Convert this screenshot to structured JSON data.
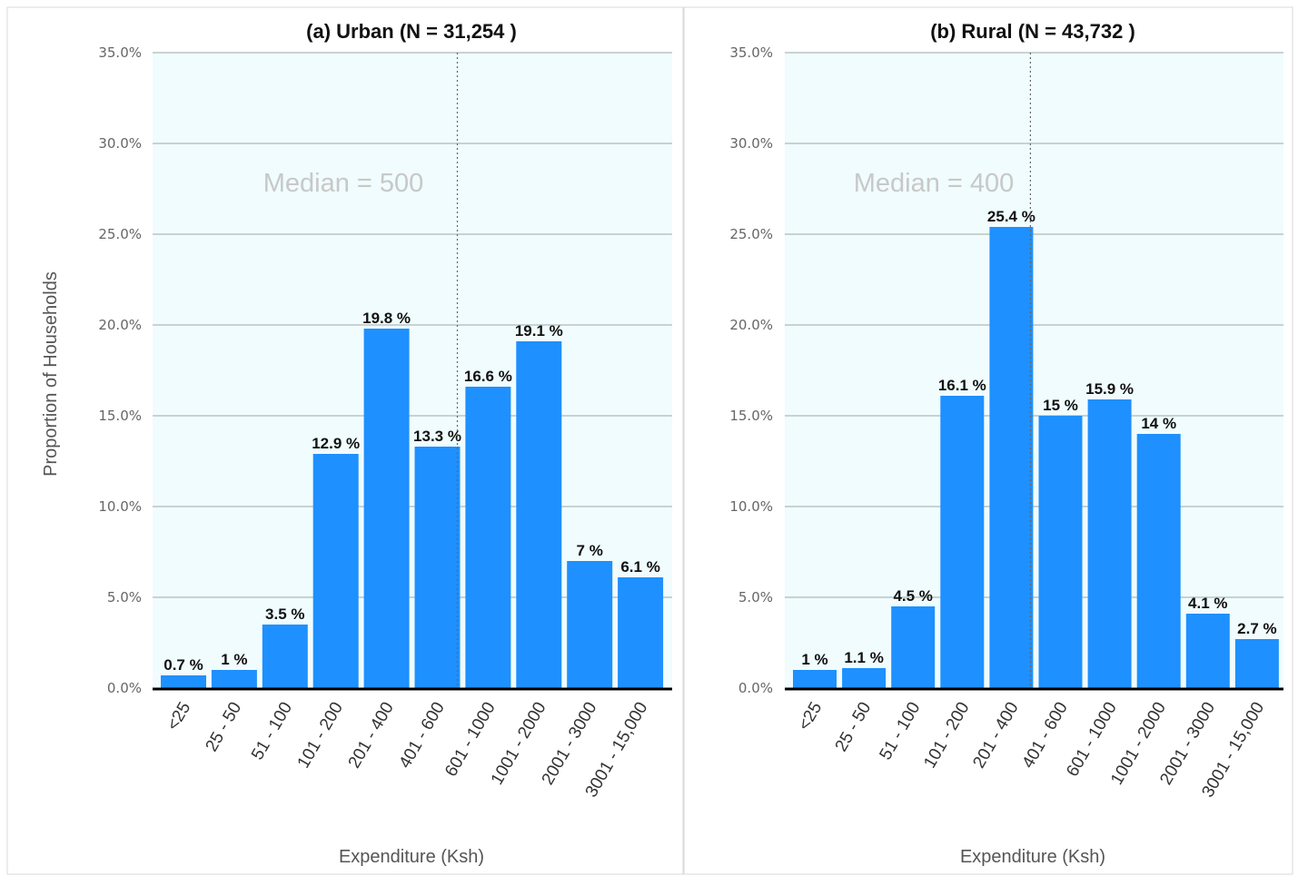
{
  "figure": {
    "ylabel": "Proportion of Households",
    "xlabel": "Expenditure (Ksh)"
  },
  "chart_data": [
    {
      "type": "bar",
      "title": "(a) Urban (N = 31,254 )",
      "xlabel": "Expenditure (Ksh)",
      "ylabel": "Proportion of Households",
      "ylim": [
        0,
        35
      ],
      "yticks": [
        "0.0%",
        "5.0%",
        "10.0%",
        "15.0%",
        "20.0%",
        "25.0%",
        "30.0%",
        "35.0%"
      ],
      "grid": true,
      "categories": [
        "<25",
        "25 - 50",
        "51 - 100",
        "101 - 200",
        "201 - 400",
        "401 - 600",
        "601 - 1000",
        "1001 - 2000",
        "2001 - 3000",
        "3001 - 15,000"
      ],
      "values": [
        0.7,
        1,
        3.5,
        12.9,
        19.8,
        13.3,
        16.6,
        19.1,
        7,
        6.1
      ],
      "data_labels": [
        "0.7 %",
        "1 %",
        "3.5 %",
        "12.9 %",
        "19.8 %",
        "13.3 %",
        "16.6 %",
        "19.1 %",
        "7 %",
        "6.1 %"
      ],
      "median": {
        "category": "401 - 600",
        "label": "Median = 500"
      },
      "colors": {
        "bar": "#1e90ff",
        "plot_bg": "#f0fcfd",
        "grid": "#c8d2d2",
        "median_line": "#666666",
        "median_text": "#c8c8c8"
      }
    },
    {
      "type": "bar",
      "title": "(b) Rural (N = 43,732 )",
      "xlabel": "Expenditure (Ksh)",
      "ylabel": "",
      "ylim": [
        0,
        35
      ],
      "yticks": [
        "0.0%",
        "5.0%",
        "10.0%",
        "15.0%",
        "20.0%",
        "25.0%",
        "30.0%",
        "35.0%"
      ],
      "grid": true,
      "categories": [
        "<25",
        "25 - 50",
        "51 - 100",
        "101 - 200",
        "201 - 400",
        "401 - 600",
        "601 - 1000",
        "1001 - 2000",
        "2001 - 3000",
        "3001 - 15,000"
      ],
      "values": [
        1,
        1.1,
        4.5,
        16.1,
        25.4,
        15,
        15.9,
        14,
        4.1,
        2.7
      ],
      "data_labels": [
        "1 %",
        "1.1 %",
        "4.5 %",
        "16.1 %",
        "25.4 %",
        "15 %",
        "15.9 %",
        "14 %",
        "4.1 %",
        "2.7 %"
      ],
      "median": {
        "category": "201 - 400",
        "label": "Median = 400"
      },
      "colors": {
        "bar": "#1e90ff",
        "plot_bg": "#f0fcfd",
        "grid": "#c8d2d2",
        "median_line": "#666666",
        "median_text": "#c8c8c8"
      }
    }
  ]
}
